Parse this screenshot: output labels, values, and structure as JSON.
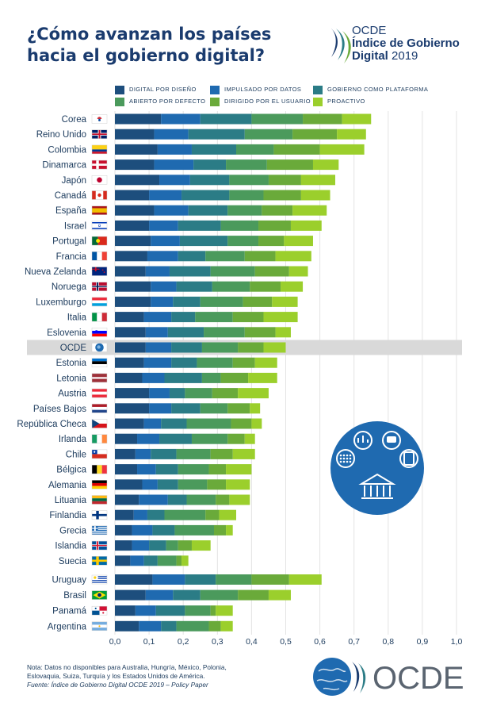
{
  "header": {
    "title_line1": "¿Cómo avanzan los países",
    "title_line2": "hacia el gobierno digital?",
    "brand_line1": "OCDE",
    "brand_line2": "Índice de Gobierno",
    "brand_line3_a": "Digital",
    "brand_line3_b": " 2019"
  },
  "legend": [
    {
      "label": "DIGITAL POR DISEÑO",
      "color": "#1d4e7d"
    },
    {
      "label": "IMPULSADO POR DATOS",
      "color": "#1f6ab0"
    },
    {
      "label": "GOBIERNO COMO PLATAFORMA",
      "color": "#2b7c86"
    },
    {
      "label": "ABIERTO POR DEFECTO",
      "color": "#4b9a5c"
    },
    {
      "label": "DIRIGIDO POR EL USUARIO",
      "color": "#6aaa3a"
    },
    {
      "label": "PROACTIVO",
      "color": "#9bcf2c"
    }
  ],
  "chart_data": {
    "type": "bar",
    "orientation": "horizontal",
    "stacked": true,
    "highlight": "OCDE",
    "xlim": [
      0,
      1
    ],
    "xticks": [
      "0,0",
      "0,1",
      "0,2",
      "0,3",
      "0,4",
      "0,5",
      "0,6",
      "0,7",
      "0,8",
      "0,9",
      "1,0"
    ],
    "series_names": [
      "DIGITAL POR DISEÑO",
      "IMPULSADO POR DATOS",
      "GOBIERNO COMO PLATAFORMA",
      "ABIERTO POR DEFECTO",
      "DIRIGIDO POR EL USUARIO",
      "PROACTIVO"
    ],
    "rows": [
      {
        "country": "Corea",
        "flag": "kr",
        "values": [
          0.135,
          0.115,
          0.15,
          0.15,
          0.115,
          0.085
        ]
      },
      {
        "country": "Reino Unido",
        "flag": "gb",
        "values": [
          0.115,
          0.1,
          0.165,
          0.14,
          0.13,
          0.085
        ]
      },
      {
        "country": "Colombia",
        "flag": "co",
        "values": [
          0.125,
          0.1,
          0.13,
          0.11,
          0.135,
          0.13
        ]
      },
      {
        "country": "Dinamarca",
        "flag": "dk",
        "values": [
          0.115,
          0.115,
          0.095,
          0.12,
          0.135,
          0.075
        ]
      },
      {
        "country": "Japón",
        "flag": "jp",
        "values": [
          0.13,
          0.09,
          0.115,
          0.115,
          0.095,
          0.1
        ]
      },
      {
        "country": "Canadá",
        "flag": "ca",
        "values": [
          0.1,
          0.095,
          0.14,
          0.1,
          0.11,
          0.085
        ]
      },
      {
        "country": "España",
        "flag": "es",
        "values": [
          0.115,
          0.1,
          0.115,
          0.1,
          0.09,
          0.1
        ]
      },
      {
        "country": "Israel",
        "flag": "il",
        "values": [
          0.1,
          0.085,
          0.125,
          0.11,
          0.095,
          0.09
        ]
      },
      {
        "country": "Portugal",
        "flag": "pt",
        "values": [
          0.105,
          0.085,
          0.14,
          0.09,
          0.075,
          0.085
        ]
      },
      {
        "country": "Francia",
        "flag": "fr",
        "values": [
          0.095,
          0.09,
          0.08,
          0.115,
          0.09,
          0.105
        ]
      },
      {
        "country": "Nueva Zelanda",
        "flag": "nz",
        "values": [
          0.09,
          0.07,
          0.12,
          0.13,
          0.1,
          0.055
        ]
      },
      {
        "country": "Noruega",
        "flag": "no",
        "values": [
          0.105,
          0.075,
          0.105,
          0.11,
          0.09,
          0.065
        ]
      },
      {
        "country": "Luxemburgo",
        "flag": "lu",
        "values": [
          0.105,
          0.065,
          0.08,
          0.125,
          0.085,
          0.075
        ]
      },
      {
        "country": "Italia",
        "flag": "it",
        "values": [
          0.085,
          0.08,
          0.07,
          0.11,
          0.09,
          0.1
        ]
      },
      {
        "country": "Eslovenia",
        "flag": "si",
        "values": [
          0.09,
          0.065,
          0.105,
          0.12,
          0.09,
          0.045
        ]
      },
      {
        "country": "OCDE",
        "flag": "oecd",
        "values": [
          0.09,
          0.075,
          0.09,
          0.105,
          0.075,
          0.065
        ]
      },
      {
        "country": "Estonia",
        "flag": "ee",
        "values": [
          0.085,
          0.08,
          0.075,
          0.105,
          0.065,
          0.065
        ]
      },
      {
        "country": "Letonia",
        "flag": "lv",
        "values": [
          0.08,
          0.065,
          0.11,
          0.055,
          0.08,
          0.085
        ]
      },
      {
        "country": "Austria",
        "flag": "at",
        "values": [
          0.1,
          0.06,
          0.045,
          0.08,
          0.075,
          0.09
        ]
      },
      {
        "country": "Países Bajos",
        "flag": "nl",
        "values": [
          0.1,
          0.065,
          0.085,
          0.08,
          0.065,
          0.03
        ]
      },
      {
        "country": "República Checa",
        "flag": "cz",
        "values": [
          0.085,
          0.05,
          0.075,
          0.13,
          0.06,
          0.03
        ]
      },
      {
        "country": "Irlanda",
        "flag": "ie",
        "values": [
          0.065,
          0.065,
          0.095,
          0.105,
          0.05,
          0.03
        ]
      },
      {
        "country": "Chile",
        "flag": "cl",
        "values": [
          0.06,
          0.045,
          0.075,
          0.1,
          0.065,
          0.065
        ]
      },
      {
        "country": "Bélgica",
        "flag": "be",
        "values": [
          0.065,
          0.055,
          0.065,
          0.09,
          0.05,
          0.075
        ]
      },
      {
        "country": "Alemania",
        "flag": "de",
        "values": [
          0.08,
          0.045,
          0.06,
          0.085,
          0.055,
          0.07
        ]
      },
      {
        "country": "Lituania",
        "flag": "lt",
        "values": [
          0.07,
          0.085,
          0.055,
          0.085,
          0.04,
          0.06
        ]
      },
      {
        "country": "Finlandia",
        "flag": "fi",
        "values": [
          0.055,
          0.04,
          0.05,
          0.12,
          0.04,
          0.05
        ]
      },
      {
        "country": "Grecia",
        "flag": "gr",
        "values": [
          0.05,
          0.06,
          0.065,
          0.115,
          0.035,
          0.02
        ]
      },
      {
        "country": "Islandia",
        "flag": "is",
        "values": [
          0.05,
          0.05,
          0.05,
          0.035,
          0.04,
          0.055
        ]
      },
      {
        "country": "Suecia",
        "flag": "se",
        "values": [
          0.045,
          0.04,
          0.04,
          0.055,
          0.015,
          0.02
        ]
      },
      {
        "country": "Uruguay",
        "flag": "uy",
        "values": [
          0.11,
          0.095,
          0.09,
          0.105,
          0.11,
          0.095
        ]
      },
      {
        "country": "Brasil",
        "flag": "br",
        "values": [
          0.09,
          0.08,
          0.08,
          0.11,
          0.09,
          0.065
        ]
      },
      {
        "country": "Panamá",
        "flag": "pa",
        "values": [
          0.06,
          0.06,
          0.085,
          0.075,
          0.015,
          0.05
        ]
      },
      {
        "country": "Argentina",
        "flag": "ar",
        "values": [
          0.07,
          0.065,
          0.045,
          0.095,
          0.035,
          0.035
        ]
      }
    ]
  },
  "note": {
    "line1": "Nota: Datos no disponibles para Australia, Hungría, México, Polonia,",
    "line2": "Eslovaquia, Suiza, Turquía y los Estados Unidos de América.",
    "line3": "Fuente: Índice de Gobierno Digital OCDE 2019 – Policy Paper"
  },
  "footer": {
    "brand": "OCDE"
  },
  "icons": [
    "oecd-swoosh-icon",
    "digital-government-icon",
    "globe-icon"
  ]
}
